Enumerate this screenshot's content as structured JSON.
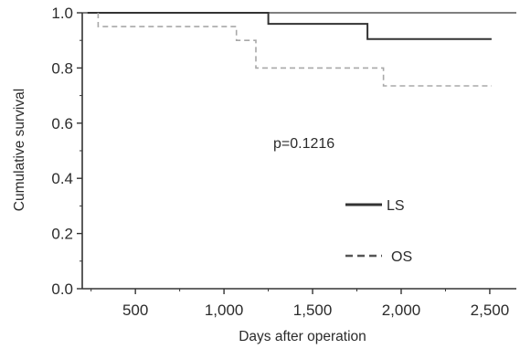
{
  "chart_data": {
    "type": "line",
    "subtype": "kaplan-meier step curves",
    "xlabel": "Days after operation",
    "ylabel": "Cumulative survival",
    "xlim": [
      200,
      2650
    ],
    "ylim": [
      0.0,
      1.0
    ],
    "x_ticks": [
      500,
      1000,
      1500,
      2000,
      2500
    ],
    "x_tick_labels": [
      "500",
      "1,000",
      "1,500",
      "2,000",
      "2,500"
    ],
    "y_ticks": [
      0.0,
      0.2,
      0.4,
      0.6,
      0.8,
      1.0
    ],
    "y_tick_labels": [
      "0.0",
      "0.2",
      "0.4",
      "0.6",
      "0.8",
      "1.0"
    ],
    "grid": false,
    "annotation": "p=0.1216",
    "legend_placement": "inside-right",
    "series": [
      {
        "name": "LS",
        "line_style": "solid",
        "color": "#333333",
        "points": [
          [
            230,
            1.0
          ],
          [
            1250,
            1.0
          ],
          [
            1250,
            0.96
          ],
          [
            1810,
            0.96
          ],
          [
            1810,
            0.905
          ],
          [
            2510,
            0.905
          ]
        ]
      },
      {
        "name": "OS",
        "line_style": "dashed",
        "color": "#a8a8a8",
        "points": [
          [
            290,
            1.0
          ],
          [
            290,
            0.95
          ],
          [
            1070,
            0.95
          ],
          [
            1070,
            0.9
          ],
          [
            1180,
            0.9
          ],
          [
            1180,
            0.8
          ],
          [
            1900,
            0.8
          ],
          [
            1900,
            0.735
          ],
          [
            2510,
            0.735
          ]
        ]
      }
    ]
  }
}
